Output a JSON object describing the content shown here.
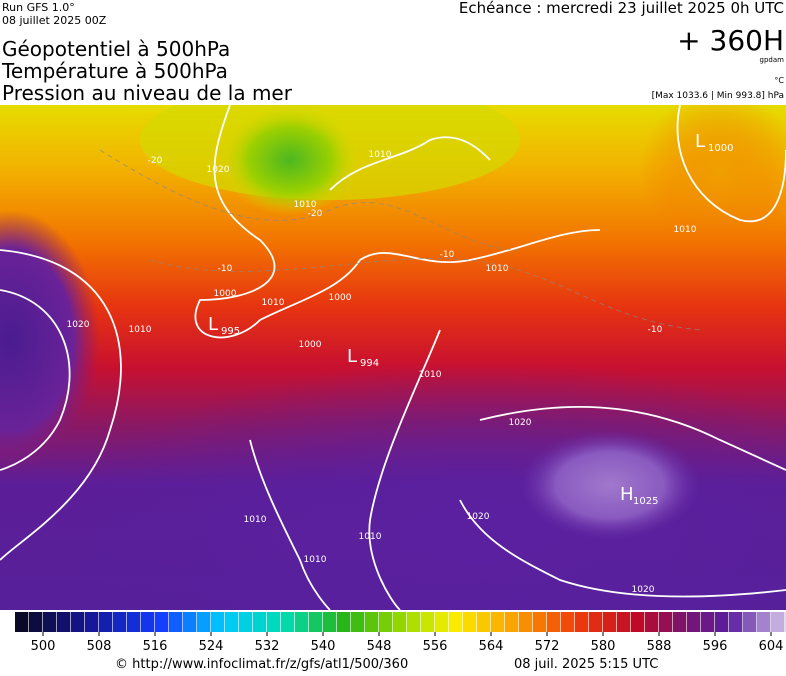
{
  "header": {
    "run": "Run GFS 1.0°",
    "run_date": "08 juillet 2025 00Z",
    "titles": [
      "Géopotentiel à 500hPa",
      "Température à 500hPa",
      "Pression au niveau de la mer"
    ],
    "valid": "Echéance : mercredi 23 juillet 2025 0h UTC",
    "lead": "+ 360H",
    "unit_geo": "gpdam",
    "unit_temp": "°C",
    "pressure_range": "[Max 1033.6 | Min 993.8] hPa"
  },
  "map": {
    "contour_labels": [
      "1020",
      "-20",
      "1010",
      "-20",
      "1010",
      "-10",
      "-10",
      "1010",
      "1010",
      "1000",
      "1010",
      "1000",
      "1020",
      "1010",
      "1000",
      "1010",
      "-10",
      "1020",
      "1020",
      "1010",
      "1010",
      "1010",
      "1020"
    ],
    "centers": [
      {
        "letter": "L",
        "value": "1000"
      },
      {
        "letter": "L",
        "value": "995"
      },
      {
        "letter": "L",
        "value": "994"
      },
      {
        "letter": "H",
        "value": "1025"
      }
    ]
  },
  "colorbar": {
    "ticks": [
      500,
      508,
      516,
      524,
      532,
      540,
      548,
      556,
      564,
      572,
      580,
      588,
      596,
      604
    ]
  },
  "footer": {
    "source": "© http://www.infoclimat.fr/z/gfs/atl1/500/360",
    "generated": "08 juil. 2025  5:15 UTC"
  }
}
